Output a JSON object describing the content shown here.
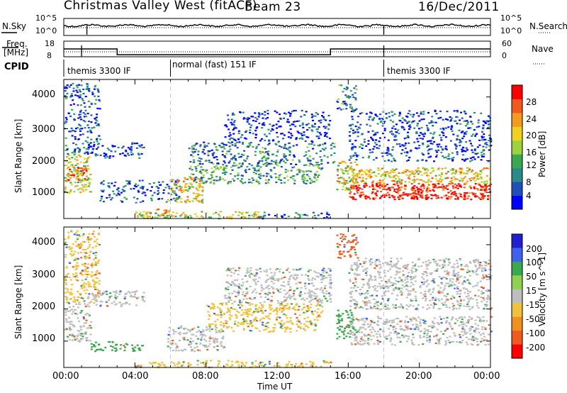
{
  "header": {
    "station": "Christmas Valley West (fitACF)",
    "beam": "Beam 23",
    "date": "16/Dec/2011"
  },
  "top_panels": {
    "nsky_label": "N.Sky",
    "nsearch_label": "N.Search",
    "nsky_ticks": [
      "10^5",
      "10^0"
    ],
    "nsearch_ticks": [
      "10^5",
      "10^0"
    ],
    "freq_label_1": "Freq.",
    "freq_label_2": "[MHz]",
    "freq_ticks": [
      "18",
      "8"
    ],
    "nave_label": "Nave",
    "nave_ticks": [
      "60",
      "0"
    ],
    "cpid_label": "CPID",
    "cpid_segments": [
      {
        "label": "themis 3300 IF",
        "start_hour": 0,
        "end_hour": 6
      },
      {
        "label": "normal (fast) 151 IF",
        "start_hour": 6,
        "end_hour": 18
      },
      {
        "label": "themis 3300 IF",
        "start_hour": 18,
        "end_hour": 24
      }
    ]
  },
  "chart_data": [
    {
      "type": "heatmap",
      "title": "",
      "ylabel": "Slant Range [km]",
      "xlabel": "",
      "xlim": [
        0,
        24
      ],
      "ylim": [
        180,
        4550
      ],
      "yticks": [
        "1000",
        "2000",
        "3000",
        "4000"
      ],
      "colorbar_label": "Power [dB]",
      "colorbar_ticks": [
        "28",
        "24",
        "20",
        "16",
        "12",
        "8",
        "4"
      ],
      "colorbar_colors": [
        "#0000ff",
        "#1f4fb8",
        "#2a8a8a",
        "#3aa84e",
        "#9ed23c",
        "#f0d020",
        "#f59a20",
        "#f05a1e",
        "#ff0000"
      ],
      "echo_regions": [
        {
          "x": [
            0.0,
            1.5
          ],
          "y": [
            1000,
            2200
          ],
          "level": 0.55
        },
        {
          "x": [
            0.2,
            1.3
          ],
          "y": [
            1400,
            1800
          ],
          "level": 0.8
        },
        {
          "x": [
            0.0,
            2.0
          ],
          "y": [
            2200,
            4450
          ],
          "level": 0.2
        },
        {
          "x": [
            1.3,
            4.5
          ],
          "y": [
            2100,
            2600
          ],
          "level": 0.15
        },
        {
          "x": [
            2.0,
            6.5
          ],
          "y": [
            700,
            1400
          ],
          "level": 0.15
        },
        {
          "x": [
            5.0,
            6.0
          ],
          "y": [
            200,
            500
          ],
          "level": 0.7
        },
        {
          "x": [
            4.0,
            11.0
          ],
          "y": [
            200,
            420
          ],
          "level": 0.55
        },
        {
          "x": [
            5.8,
            7.8
          ],
          "y": [
            700,
            1500
          ],
          "level": 0.6
        },
        {
          "x": [
            7.0,
            14.5
          ],
          "y": [
            1300,
            1900
          ],
          "level": 0.35
        },
        {
          "x": [
            7.0,
            15.2
          ],
          "y": [
            1900,
            2600
          ],
          "level": 0.25
        },
        {
          "x": [
            9.0,
            15.0
          ],
          "y": [
            2600,
            3600
          ],
          "level": 0.1
        },
        {
          "x": [
            11.0,
            15.0
          ],
          "y": [
            200,
            400
          ],
          "level": 0.2
        },
        {
          "x": [
            15.3,
            16.5
          ],
          "y": [
            1100,
            2000
          ],
          "level": 0.6
        },
        {
          "x": [
            16.0,
            24.0
          ],
          "y": [
            800,
            1300
          ],
          "level": 0.95
        },
        {
          "x": [
            16.0,
            24.0
          ],
          "y": [
            1300,
            1800
          ],
          "level": 0.65
        },
        {
          "x": [
            16.0,
            24.0
          ],
          "y": [
            2000,
            3600
          ],
          "level": 0.15
        },
        {
          "x": [
            15.3,
            16.5
          ],
          "y": [
            3600,
            4400
          ],
          "level": 0.3
        }
      ]
    },
    {
      "type": "heatmap",
      "title": "",
      "ylabel": "Slant Range [km]",
      "xlabel": "Time UT",
      "xlim": [
        0,
        24
      ],
      "ylim": [
        180,
        4550
      ],
      "xticks": [
        "00:00",
        "04:00",
        "08:00",
        "12:00",
        "16:00",
        "20:00",
        "00:00"
      ],
      "yticks": [
        "1000",
        "2000",
        "3000",
        "4000"
      ],
      "colorbar_label": "Velocity [m s^-1]",
      "colorbar_ticks": [
        "200",
        "100",
        "50",
        "15",
        "-15",
        "-50",
        "-100",
        "-200"
      ],
      "colorbar_colors": [
        "#2020d0",
        "#4060f0",
        "#3aa84e",
        "#8fd050",
        "#bebebe",
        "#f0c040",
        "#f09020",
        "#f05a1e",
        "#ff0000"
      ],
      "echo_regions": [
        {
          "x": [
            0.0,
            1.5
          ],
          "y": [
            1000,
            2200
          ],
          "vel": -15
        },
        {
          "x": [
            0.0,
            2.0
          ],
          "y": [
            2200,
            4450
          ],
          "vel": -50
        },
        {
          "x": [
            1.3,
            4.5
          ],
          "y": [
            2100,
            2600
          ],
          "vel": -15
        },
        {
          "x": [
            1.5,
            4.5
          ],
          "y": [
            700,
            1000
          ],
          "vel": 50
        },
        {
          "x": [
            4.0,
            11.0
          ],
          "y": [
            200,
            420
          ],
          "vel": -50
        },
        {
          "x": [
            5.8,
            9.0
          ],
          "y": [
            700,
            1500
          ],
          "vel": -15
        },
        {
          "x": [
            8.0,
            14.5
          ],
          "y": [
            1300,
            2200
          ],
          "vel": -50
        },
        {
          "x": [
            9.0,
            15.0
          ],
          "y": [
            2200,
            3300
          ],
          "vel": -15
        },
        {
          "x": [
            11.0,
            15.0
          ],
          "y": [
            200,
            400
          ],
          "vel": -50
        },
        {
          "x": [
            15.3,
            16.5
          ],
          "y": [
            1100,
            2000
          ],
          "vel": 50
        },
        {
          "x": [
            16.0,
            24.0
          ],
          "y": [
            900,
            1800
          ],
          "vel": -15
        },
        {
          "x": [
            16.0,
            24.0
          ],
          "y": [
            2000,
            3600
          ],
          "vel": -15
        },
        {
          "x": [
            15.3,
            16.5
          ],
          "y": [
            3600,
            4400
          ],
          "vel": -200
        }
      ]
    }
  ]
}
